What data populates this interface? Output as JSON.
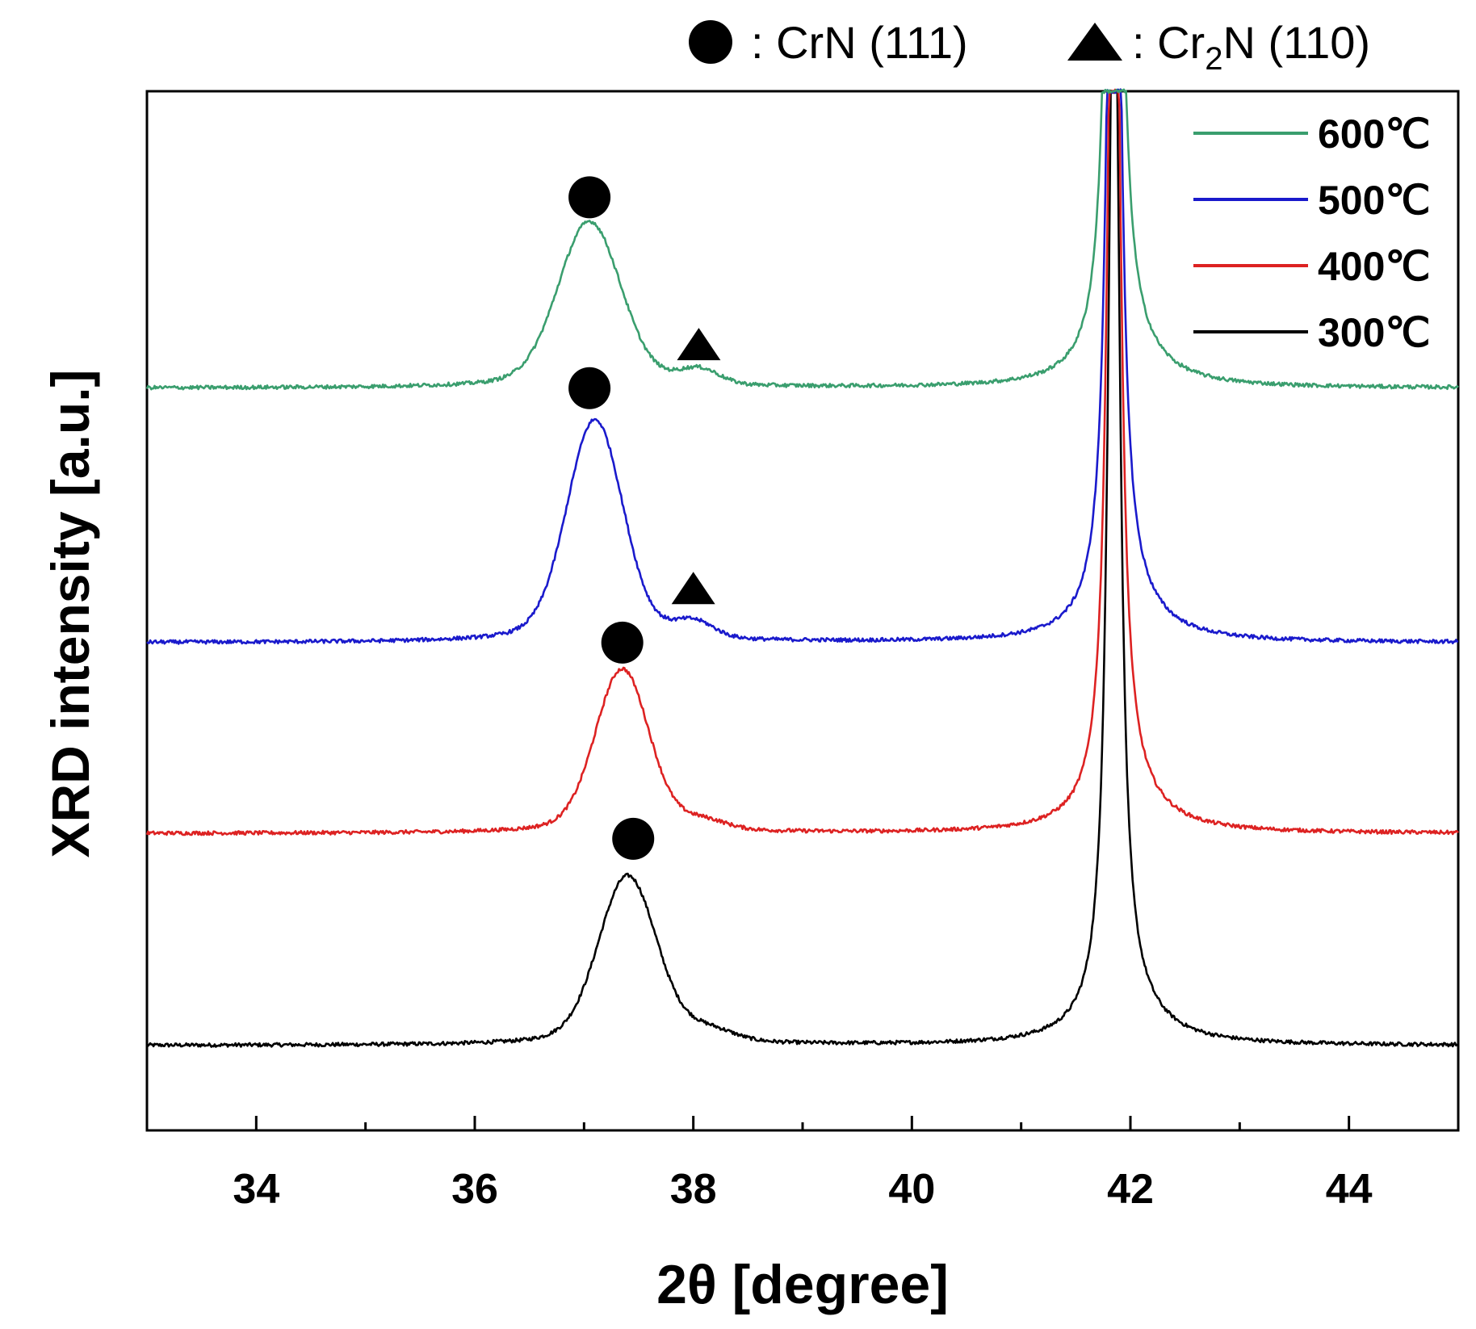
{
  "chart_data": {
    "type": "line",
    "xlabel": "2θ [degree]",
    "ylabel": "XRD intensity [a.u.]",
    "xlim": [
      33,
      45
    ],
    "ylim": [
      -0.8,
      9.0
    ],
    "x_ticks": [
      34,
      36,
      38,
      40,
      42,
      44
    ],
    "x_tick_labels": [
      "34",
      "36",
      "38",
      "40",
      "42",
      "44"
    ],
    "minor_tick_step": 1,
    "phase_key": {
      "circle_label": ": CrN (111)",
      "triangle_prefix": ": Cr",
      "triangle_sub": "2",
      "triangle_suffix": "N (110)"
    },
    "legend_position": "top-right",
    "series": [
      {
        "name": "600℃",
        "color": "#3a9e6e",
        "baseline": 6.2,
        "crn_peak": {
          "center": 37.05,
          "height": 1.57,
          "width": 0.28
        },
        "cr2n_peak": {
          "center": 38.05,
          "height": 0.14,
          "width": 0.18
        },
        "substrate_peak": {
          "center": 41.85,
          "height": 9.0
        },
        "crn_marker_x": 37.05,
        "crn_marker_y": 8.0,
        "cr2n_marker_x": 38.05,
        "cr2n_marker_y": 6.6
      },
      {
        "name": "500℃",
        "color": "#1a1acc",
        "baseline": 3.8,
        "crn_peak": {
          "center": 37.1,
          "height": 2.1,
          "width": 0.25
        },
        "cr2n_peak": {
          "center": 38.0,
          "height": 0.15,
          "width": 0.18
        },
        "substrate_peak": {
          "center": 41.85,
          "height": 9.0
        },
        "crn_marker_x": 37.05,
        "crn_marker_y": 6.2,
        "cr2n_marker_x": 38.0,
        "cr2n_marker_y": 4.3
      },
      {
        "name": "400℃",
        "color": "#dd2222",
        "baseline": 2.0,
        "crn_peak": {
          "center": 37.35,
          "height": 1.55,
          "width": 0.24
        },
        "cr2n_peak": {
          "center": 38.1,
          "height": 0.08,
          "width": 0.2
        },
        "substrate_peak": {
          "center": 41.85,
          "height": 9.0
        },
        "crn_marker_x": 37.35,
        "crn_marker_y": 3.8
      },
      {
        "name": "300℃",
        "color": "#000000",
        "baseline": 0.0,
        "crn_peak": {
          "center": 37.4,
          "height": 1.6,
          "width": 0.26
        },
        "cr2n_peak": {
          "center": 38.15,
          "height": 0.1,
          "width": 0.22
        },
        "substrate_peak": {
          "center": 41.85,
          "height": 9.0
        },
        "crn_marker_x": 37.45,
        "crn_marker_y": 1.95
      }
    ]
  }
}
